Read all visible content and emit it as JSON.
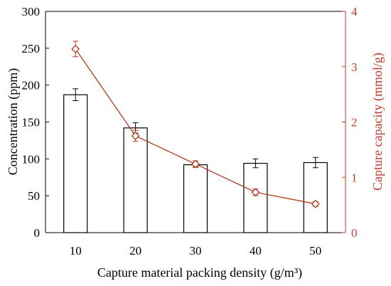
{
  "colors": {
    "left_axis": "#000000",
    "right_axis": "#c0392b",
    "bars_fill": "#ffffff",
    "bars_stroke": "#000000",
    "line_series": "#b23a1f"
  },
  "chart_data": {
    "type": "bar",
    "categories": [
      "10",
      "20",
      "30",
      "40",
      "50"
    ],
    "xlabel": "Capture material packing density (g/m³)",
    "ylabel_left": "Concentration (ppm)",
    "ylabel_right": "Capture capacity (mmol/g)",
    "ylim_left": [
      0,
      300
    ],
    "ylim_right": [
      0,
      4
    ],
    "yticks_left": [
      "0",
      "50",
      "100",
      "150",
      "200",
      "250",
      "300"
    ],
    "yticks_right": [
      "0",
      "1",
      "2",
      "3",
      "4"
    ],
    "grid": false,
    "series": [
      {
        "axis": "left",
        "type": "bar",
        "values": [
          187,
          142,
          92,
          94,
          95
        ],
        "errors": [
          8,
          7,
          3,
          6,
          7
        ]
      },
      {
        "axis": "right",
        "type": "line",
        "marker": "diamond",
        "values": [
          3.32,
          1.75,
          1.24,
          0.73,
          0.52
        ],
        "errors": [
          0.14,
          0.1,
          0.06,
          0.06,
          0.04
        ]
      }
    ]
  }
}
